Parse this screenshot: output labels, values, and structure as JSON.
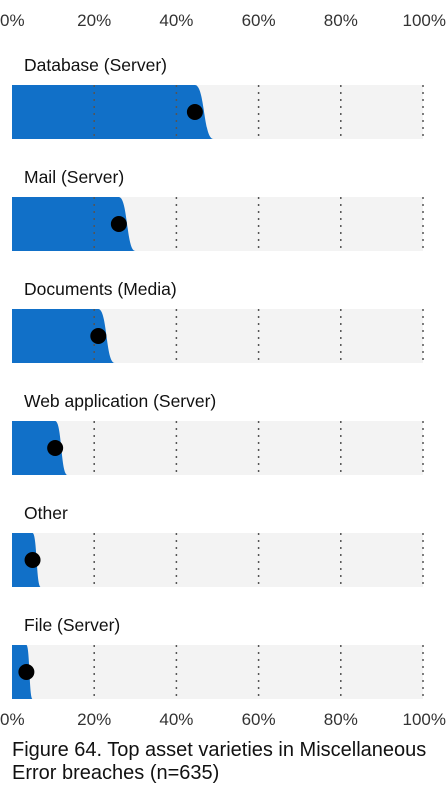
{
  "chart_data": {
    "type": "bar",
    "caption": "Figure 64. Top asset varieties in Miscellaneous Error breaches (n=635)",
    "x_ticks": [
      "0%",
      "20%",
      "40%",
      "60%",
      "80%",
      "100%"
    ],
    "xlim": [
      0,
      100
    ],
    "categories": [
      "Database (Server)",
      "Mail (Server)",
      "Documents (Media)",
      "Web application (Server)",
      "Other",
      "File (Server)"
    ],
    "values": [
      44.5,
      26,
      21,
      10.5,
      5,
      3.5
    ],
    "interval_upper": [
      49,
      30,
      25,
      13.5,
      7,
      5
    ],
    "grid": "dotted vertical at 20% intervals",
    "colors": {
      "bar": "#1170c8",
      "track": "#f3f3f3",
      "point": "#000000",
      "grid": "#555555"
    }
  }
}
